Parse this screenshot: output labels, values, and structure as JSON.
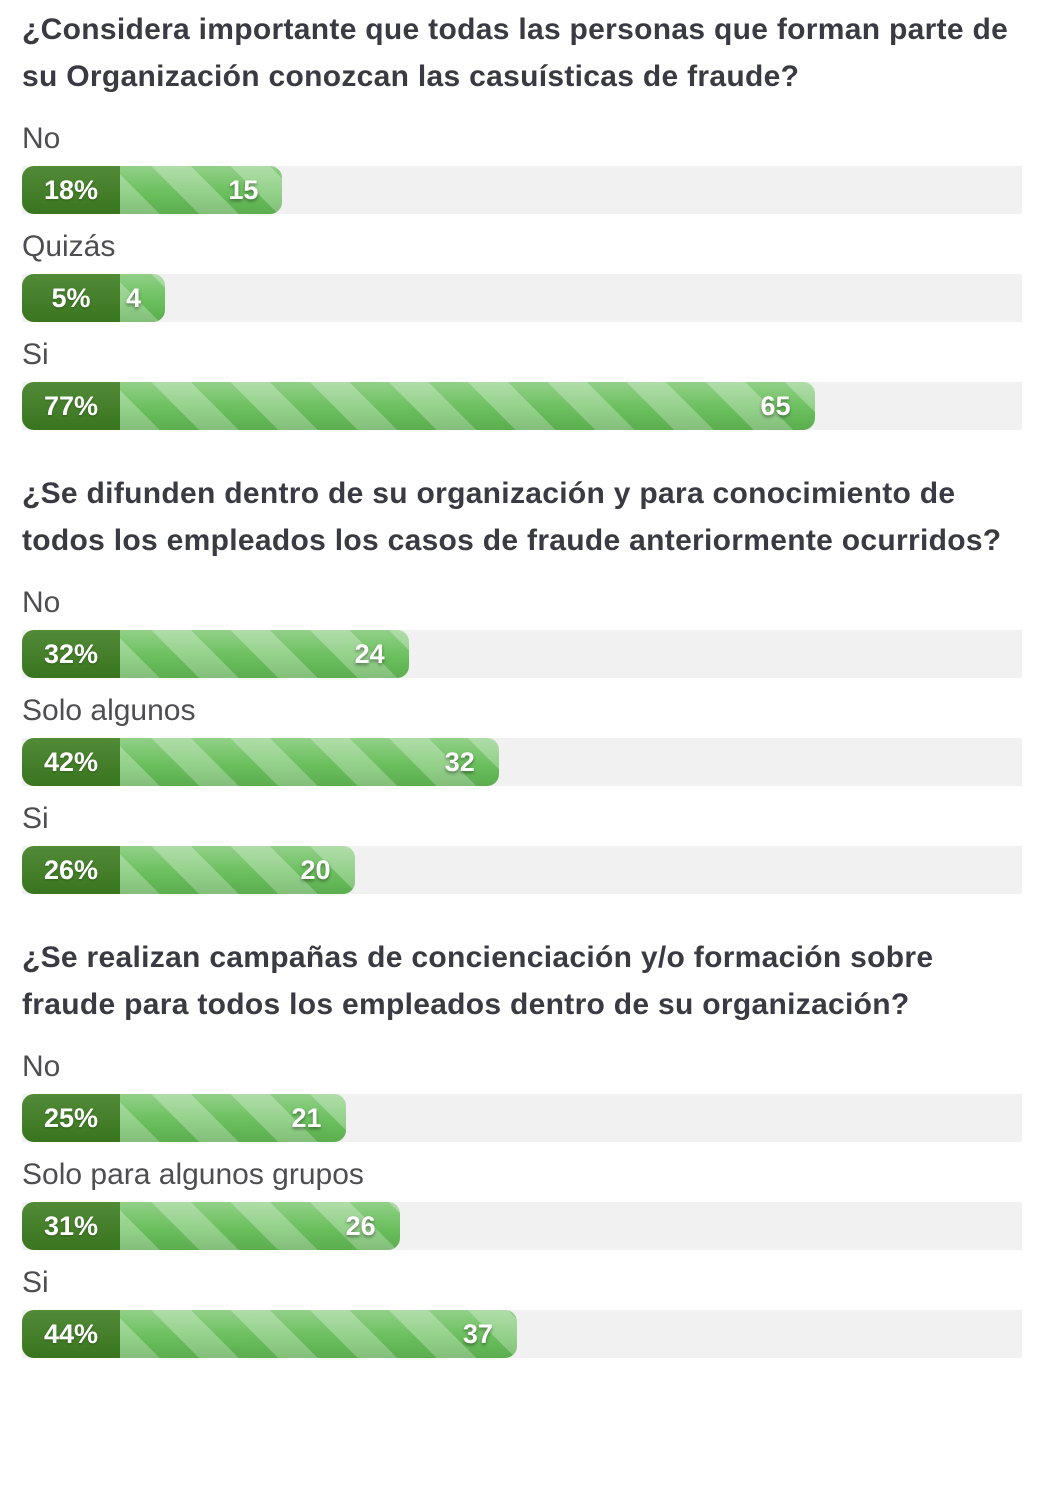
{
  "colors": {
    "heading_text": "#3a3a42",
    "option_label_text": "#4d4d52",
    "bar_track": "#f1f1f2",
    "percent_box_green": "#3e7e21",
    "bar_fill_green": "#63bc55",
    "bar_value_text": "#ffffff"
  },
  "layout_hints": {
    "bar_style": "horizontal striped progress bars, dark green percent box at left, light gray track",
    "legend": "none",
    "grid": "off"
  },
  "chart_data": [
    {
      "type": "bar",
      "orientation": "horizontal",
      "title": "¿Considera importante que todas las personas que forman parte de su Organización conozcan las casuísticas de fraude?",
      "categories": [
        "No",
        "Quizás",
        "Si"
      ],
      "values": [
        15,
        4,
        65
      ],
      "percent": [
        18,
        5,
        77
      ],
      "percent_labels": [
        "18%",
        "5%",
        "77%"
      ],
      "xlim": [
        0,
        100
      ]
    },
    {
      "type": "bar",
      "orientation": "horizontal",
      "title": "¿Se difunden dentro de su organización y para conocimiento de todos los empleados los casos de fraude anteriormente ocurridos?",
      "categories": [
        "No",
        "Solo algunos",
        "Si"
      ],
      "values": [
        24,
        32,
        20
      ],
      "percent": [
        32,
        42,
        26
      ],
      "percent_labels": [
        "32%",
        "42%",
        "26%"
      ],
      "xlim": [
        0,
        100
      ]
    },
    {
      "type": "bar",
      "orientation": "horizontal",
      "title": "¿Se realizan campañas de concienciación y/o formación sobre fraude para todos los empleados dentro de su organización?",
      "categories": [
        "No",
        "Solo para algunos grupos",
        "Si"
      ],
      "values": [
        21,
        26,
        37
      ],
      "percent": [
        25,
        31,
        44
      ],
      "percent_labels": [
        "25%",
        "31%",
        "44%"
      ],
      "xlim": [
        0,
        100
      ]
    }
  ]
}
